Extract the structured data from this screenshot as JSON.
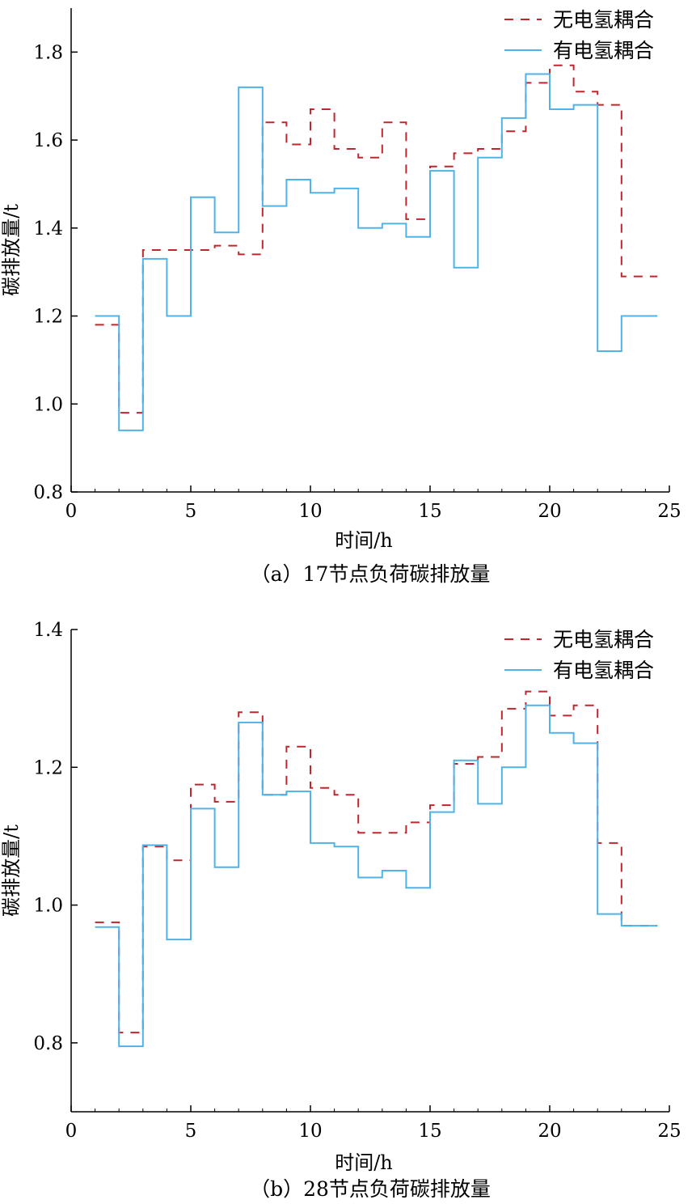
{
  "colors": {
    "no_coupling": "#c0262d",
    "with_coupling": "#4fb3e8",
    "axis": "#000000"
  },
  "chart_data": [
    {
      "type": "line",
      "step": "post",
      "caption": "（a）17节点负荷碳排放量",
      "xlabel": "时间/h",
      "ylabel": "碳排放量/t",
      "xlim": [
        0,
        25
      ],
      "ylim": [
        0.8,
        1.9
      ],
      "xticks": [
        0,
        5,
        10,
        15,
        20,
        25
      ],
      "yticks": [
        0.8,
        1.0,
        1.2,
        1.4,
        1.6,
        1.8
      ],
      "ytick_labels": [
        "0.8",
        "1.0",
        "1.2",
        "1.4",
        "1.6",
        "1.8"
      ],
      "grid": false,
      "legend_position": "top-right",
      "x_end": 24.5,
      "series": [
        {
          "name": "无电氢耦合",
          "style": "dashed",
          "color": "#c0262d",
          "x": [
            1,
            2,
            3,
            4,
            5,
            6,
            7,
            8,
            9,
            10,
            11,
            12,
            13,
            14,
            15,
            16,
            17,
            18,
            19,
            20,
            21,
            22,
            23
          ],
          "values": [
            1.18,
            0.98,
            1.35,
            1.35,
            1.35,
            1.36,
            1.34,
            1.64,
            1.59,
            1.67,
            1.58,
            1.56,
            1.64,
            1.42,
            1.54,
            1.57,
            1.58,
            1.62,
            1.73,
            1.77,
            1.71,
            1.68,
            1.29
          ]
        },
        {
          "name": "有电氢耦合",
          "style": "solid",
          "color": "#4fb3e8",
          "x": [
            1,
            2,
            3,
            4,
            5,
            6,
            7,
            8,
            9,
            10,
            11,
            12,
            13,
            14,
            15,
            16,
            17,
            18,
            19,
            20,
            21,
            22,
            23
          ],
          "values": [
            1.2,
            0.94,
            1.33,
            1.2,
            1.47,
            1.39,
            1.72,
            1.45,
            1.51,
            1.48,
            1.49,
            1.4,
            1.41,
            1.38,
            1.53,
            1.31,
            1.56,
            1.65,
            1.75,
            1.67,
            1.68,
            1.12,
            1.2
          ]
        }
      ]
    },
    {
      "type": "line",
      "step": "post",
      "caption": "（b）28节点负荷碳排放量",
      "xlabel": "时间/h",
      "ylabel": "碳排放量/t",
      "xlim": [
        0,
        25
      ],
      "ylim": [
        0.7,
        1.4
      ],
      "xticks": [
        0,
        5,
        10,
        15,
        20,
        25
      ],
      "yticks": [
        0.8,
        1.0,
        1.2,
        1.4
      ],
      "ytick_labels": [
        "0.8",
        "1.0",
        "1.2",
        "1.4"
      ],
      "grid": false,
      "legend_position": "top-right",
      "x_end": 24.5,
      "series": [
        {
          "name": "无电氢耦合",
          "style": "dashed",
          "color": "#c0262d",
          "x": [
            1,
            2,
            3,
            4,
            5,
            6,
            7,
            8,
            9,
            10,
            11,
            12,
            13,
            14,
            15,
            16,
            17,
            18,
            19,
            20,
            21,
            22,
            23
          ],
          "values": [
            0.975,
            0.815,
            1.085,
            1.065,
            1.175,
            1.15,
            1.28,
            1.16,
            1.23,
            1.17,
            1.16,
            1.105,
            1.105,
            1.12,
            1.145,
            1.205,
            1.215,
            1.285,
            1.31,
            1.275,
            1.29,
            1.09,
            0.97
          ]
        },
        {
          "name": "有电氢耦合",
          "style": "solid",
          "color": "#4fb3e8",
          "x": [
            1,
            2,
            3,
            4,
            5,
            6,
            7,
            8,
            9,
            10,
            11,
            12,
            13,
            14,
            15,
            16,
            17,
            18,
            19,
            20,
            21,
            22,
            23
          ],
          "values": [
            0.968,
            0.795,
            1.087,
            0.95,
            1.14,
            1.055,
            1.265,
            1.16,
            1.165,
            1.09,
            1.085,
            1.04,
            1.05,
            1.025,
            1.135,
            1.21,
            1.147,
            1.2,
            1.29,
            1.25,
            1.235,
            0.987,
            0.97
          ]
        }
      ]
    }
  ]
}
